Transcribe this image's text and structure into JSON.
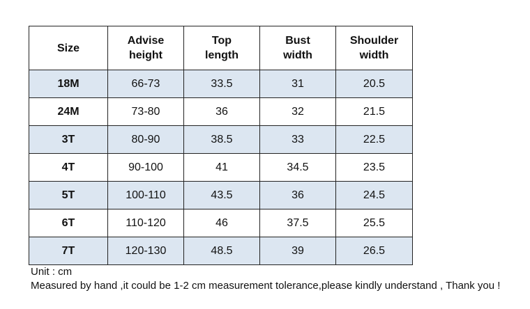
{
  "table": {
    "header": [
      [
        "Size"
      ],
      [
        "Advise",
        "height"
      ],
      [
        "Top",
        "length"
      ],
      [
        "Bust",
        "width"
      ],
      [
        "Shoulder",
        "width"
      ]
    ],
    "rows": [
      [
        "18M",
        "66-73",
        "33.5",
        "31",
        "20.5"
      ],
      [
        "24M",
        "73-80",
        "36",
        "32",
        "21.5"
      ],
      [
        "3T",
        "80-90",
        "38.5",
        "33",
        "22.5"
      ],
      [
        "4T",
        "90-100",
        "41",
        "34.5",
        "23.5"
      ],
      [
        "5T",
        "100-110",
        "43.5",
        "36",
        "24.5"
      ],
      [
        "6T",
        "110-120",
        "46",
        "37.5",
        "25.5"
      ],
      [
        "7T",
        "120-130",
        "48.5",
        "39",
        "26.5"
      ]
    ]
  },
  "notes": [
    "Unit : cm",
    "Measured by hand ,it could be 1-2 cm measurement tolerance,please kindly understand , Thank you !"
  ]
}
